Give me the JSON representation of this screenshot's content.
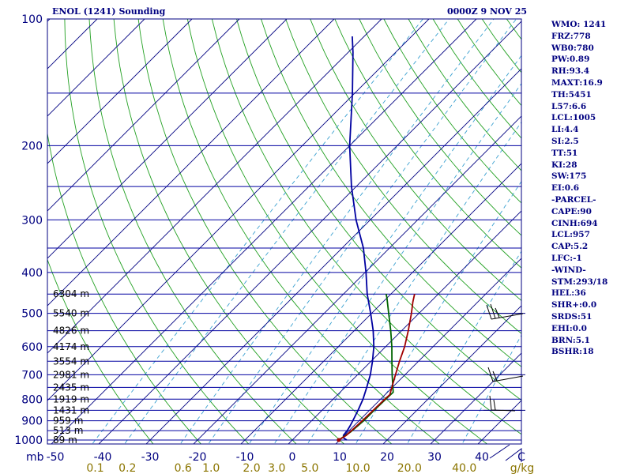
{
  "header": {
    "title": "ENOL (1241) Sounding",
    "time": "0000Z  9 NOV 25"
  },
  "indices": [
    "WMO: 1241",
    "FRZ:778",
    "WB0:780",
    "PW:0.89",
    "RH:93.4",
    "MAXT:16.9",
    "TH:5451",
    "L57:6.6",
    "LCL:1005",
    "LI:4.4",
    "SI:2.5",
    "TT:51",
    "KI:28",
    "SW:175",
    "EI:0.6",
    "-PARCEL-",
    "CAPE:90",
    "CINH:694",
    "LCL:957",
    "CAP:5.2",
    "LFC:-1",
    "-WIND-",
    "STM:293/18",
    "HEL:36",
    "SHR+:0.0",
    "SRDS:51",
    "EHI:0.0",
    "BRN:5.1",
    "BSHR:18"
  ],
  "colors": {
    "axis": "#000080",
    "isobar": "#0000a0",
    "isotherm": "#000080",
    "dry_adiabat": "#22a022",
    "moist_adiabat": "#8b7500",
    "mixing_ratio": "#3aa0d0",
    "temperature": "#a00000",
    "dewpoint": "#0000a0",
    "parcel": "#006400"
  },
  "chart_data": {
    "type": "skew-t",
    "pressure_levels": [
      100,
      200,
      300,
      400,
      500,
      600,
      700,
      800,
      900,
      1000
    ],
    "pressure_labels": [
      "100",
      "200",
      "300",
      "400",
      "500",
      "600",
      "700",
      "800",
      "900",
      "1000"
    ],
    "pressure_unit": "mb",
    "temperature_ticks": [
      -50,
      -40,
      -30,
      -20,
      -10,
      0,
      10,
      20,
      30,
      40
    ],
    "temperature_labels": [
      "-50",
      "-40",
      "-30",
      "-20",
      "-10",
      "0",
      "10",
      "20",
      "30",
      "40"
    ],
    "temperature_unit": "C",
    "xlim": [
      -50,
      50
    ],
    "ylim": [
      1000,
      100
    ],
    "mixing_ratio_labels": [
      "0.1",
      "0.2",
      "0.6",
      "1.0",
      "2.0",
      "3.0",
      "5.0",
      "10.0",
      "20.0",
      "40.0"
    ],
    "mixing_ratio_values": [
      0.1,
      0.2,
      0.6,
      1.0,
      2.0,
      3.0,
      5.0,
      10.0,
      20.0,
      40.0
    ],
    "mixing_ratio_unit": "g/kg",
    "height_labels": [
      {
        "p": 450,
        "label": "6304 m"
      },
      {
        "p": 500,
        "label": "5540 m"
      },
      {
        "p": 550,
        "label": "4826 m"
      },
      {
        "p": 600,
        "label": "4174 m"
      },
      {
        "p": 650,
        "label": "3554 m"
      },
      {
        "p": 700,
        "label": "2981 m"
      },
      {
        "p": 750,
        "label": "2435 m"
      },
      {
        "p": 800,
        "label": "1919 m"
      },
      {
        "p": 850,
        "label": "1431 m"
      },
      {
        "p": 900,
        "label": "959 m"
      },
      {
        "p": 950,
        "label": "513 m"
      },
      {
        "p": 1000,
        "label": "89 m"
      }
    ],
    "temperature_profile": [
      {
        "p": 1000,
        "t": 9.8
      },
      {
        "p": 975,
        "t": 10.4
      },
      {
        "p": 950,
        "t": 10.5
      },
      {
        "p": 925,
        "t": 10.6
      },
      {
        "p": 900,
        "t": 10.7
      },
      {
        "p": 850,
        "t": 10.8
      },
      {
        "p": 800,
        "t": 10.9
      },
      {
        "p": 780,
        "t": 11.0
      },
      {
        "p": 750,
        "t": 9.9
      },
      {
        "p": 700,
        "t": 8.0
      },
      {
        "p": 650,
        "t": 6.0
      },
      {
        "p": 600,
        "t": 4.0
      },
      {
        "p": 550,
        "t": 1.4
      },
      {
        "p": 500,
        "t": -1.6
      },
      {
        "p": 470,
        "t": -3.7
      },
      {
        "p": 450,
        "t": -5.0
      }
    ],
    "dewpoint_profile": [
      {
        "p": 1000,
        "t": 11.5
      },
      {
        "p": 990,
        "t": 10.5
      },
      {
        "p": 975,
        "t": 9.8
      },
      {
        "p": 950,
        "t": 9.6
      },
      {
        "p": 925,
        "t": 9.2
      },
      {
        "p": 900,
        "t": 8.7
      },
      {
        "p": 850,
        "t": 7.6
      },
      {
        "p": 800,
        "t": 6.3
      },
      {
        "p": 750,
        "t": 4.6
      },
      {
        "p": 700,
        "t": 2.7
      },
      {
        "p": 650,
        "t": 0.3
      },
      {
        "p": 600,
        "t": -2.5
      },
      {
        "p": 550,
        "t": -6.0
      },
      {
        "p": 500,
        "t": -10.2
      },
      {
        "p": 450,
        "t": -15.0
      },
      {
        "p": 400,
        "t": -19.8
      },
      {
        "p": 350,
        "t": -25.5
      },
      {
        "p": 300,
        "t": -33.0
      },
      {
        "p": 250,
        "t": -41.0
      },
      {
        "p": 200,
        "t": -50.0
      },
      {
        "p": 150,
        "t": -60.5
      },
      {
        "p": 120,
        "t": -69.0
      },
      {
        "p": 110,
        "t": -72.5
      }
    ],
    "parcel_profile": [
      {
        "p": 1000,
        "t": 9.8
      },
      {
        "p": 957,
        "t": 10.6
      },
      {
        "p": 900,
        "t": 11.0
      },
      {
        "p": 850,
        "t": 11.0
      },
      {
        "p": 800,
        "t": 11.1
      },
      {
        "p": 770,
        "t": 11.2
      },
      {
        "p": 700,
        "t": 7.3
      },
      {
        "p": 650,
        "t": 4.4
      },
      {
        "p": 600,
        "t": 1.3
      },
      {
        "p": 550,
        "t": -2.3
      },
      {
        "p": 500,
        "t": -6.4
      },
      {
        "p": 460,
        "t": -10.0
      },
      {
        "p": 450,
        "t": -11.0
      }
    ],
    "wind_barbs": [
      {
        "p": 500,
        "label": "wind barb 500 mb"
      },
      {
        "p": 700,
        "label": "wind barb 700 mb"
      },
      {
        "p": 850,
        "label": "wind barb 850 mb"
      }
    ]
  }
}
